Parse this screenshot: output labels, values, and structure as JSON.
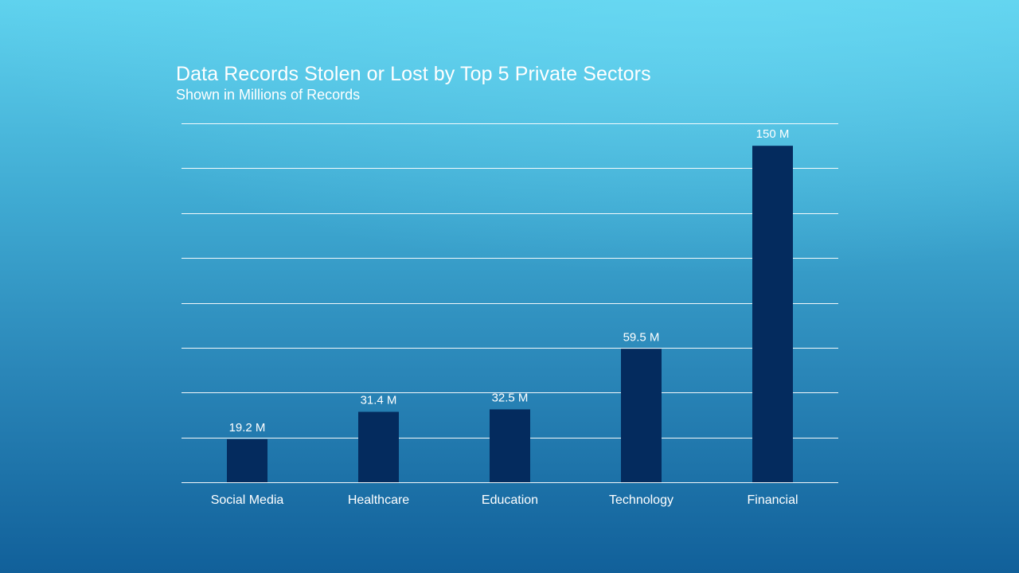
{
  "chart_data": {
    "type": "bar",
    "title": "Data Records Stolen or Lost by Top 5 Private Sectors",
    "subtitle": "Shown in Millions of Records",
    "categories": [
      "Social Media",
      "Healthcare",
      "Education",
      "Technology",
      "Financial"
    ],
    "values": [
      19.2,
      31.4,
      32.5,
      59.5,
      150
    ],
    "data_labels": [
      "19.2 M",
      "31.4 M",
      "32.5 M",
      "59.5 M",
      "150 M"
    ],
    "ylim": [
      0,
      160
    ],
    "y_gridline_step": 20,
    "grid": true,
    "legend": "none",
    "bar_color": "#042b5e",
    "label_color": "#ffffff"
  }
}
